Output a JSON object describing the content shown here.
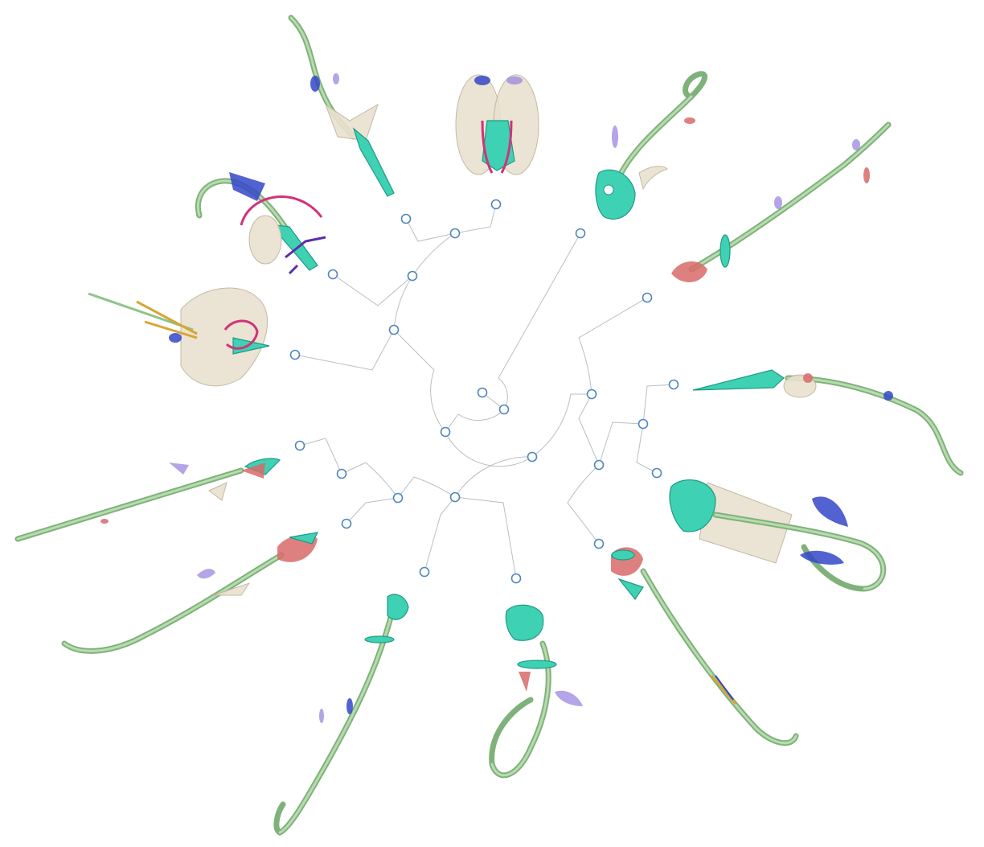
{
  "diagram": {
    "type": "radial-phylogeny",
    "background": "#ffffff",
    "colors": {
      "branch": "#b9bec4",
      "node_stroke": "#4f86bd",
      "node_fill": "#ffffff",
      "specimen_tail": "#7fb27a",
      "specimen_head": "#3fd1b3",
      "specimen_muscle": "#d86a6a",
      "specimen_bone": "#e9e1cf",
      "specimen_violet": "#9b85e0",
      "specimen_blue": "#3446c8"
    },
    "internal_node_count": 12,
    "leaf_count": 13
  }
}
